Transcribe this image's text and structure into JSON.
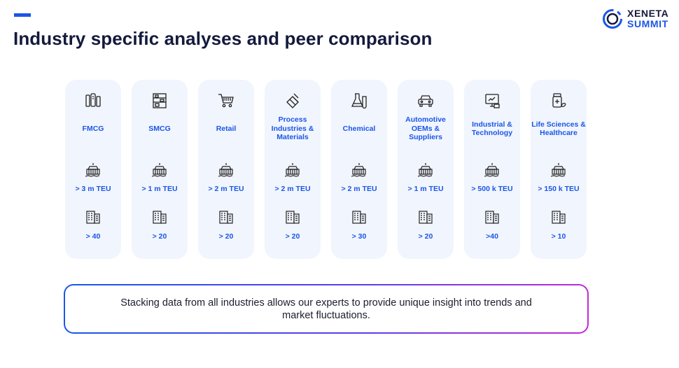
{
  "slide": {
    "title": "Industry specific analyses and peer comparison"
  },
  "logo": {
    "line1": "XENETA",
    "line2": "SUMMIT",
    "colors": {
      "dark": "#141a3c",
      "accent": "#1a56e8"
    }
  },
  "industries": [
    {
      "name": "FMCG",
      "icon": "consumer-goods-icon",
      "teu": "> 3 m TEU",
      "peers": "> 40"
    },
    {
      "name": "SMCG",
      "icon": "shelves-icon",
      "teu": "> 1 m TEU",
      "peers": "> 20"
    },
    {
      "name": "Retail",
      "icon": "shopping-cart-icon",
      "teu": "> 2 m TEU",
      "peers": "> 20"
    },
    {
      "name": "Process Industries & Materials",
      "icon": "materials-icon",
      "teu": "> 2 m TEU",
      "peers": "> 20"
    },
    {
      "name": "Chemical",
      "icon": "flask-icon",
      "teu": "> 2 m TEU",
      "peers": "> 30"
    },
    {
      "name": "Automotive OEMs & Suppliers",
      "icon": "car-icon",
      "teu": "> 1 m TEU",
      "peers": "> 20"
    },
    {
      "name": "Industrial & Technology",
      "icon": "computer-icon",
      "teu": "> 500 k TEU",
      "peers": ">40"
    },
    {
      "name": "Life Sciences & Healthcare",
      "icon": "medicine-icon",
      "teu": "> 150 k TEU",
      "peers": "> 10"
    }
  ],
  "metric_icons": {
    "volume": "container-ship-icon",
    "peers": "office-building-icon"
  },
  "note": {
    "text": "Stacking data from all industries allows our experts to provide unique insight into trends and market fluctuations."
  },
  "colors": {
    "accent": "#1a56e8",
    "card_bg": "#f1f5fd",
    "title": "#141a3c",
    "gradient_end": "#c02ad6"
  }
}
